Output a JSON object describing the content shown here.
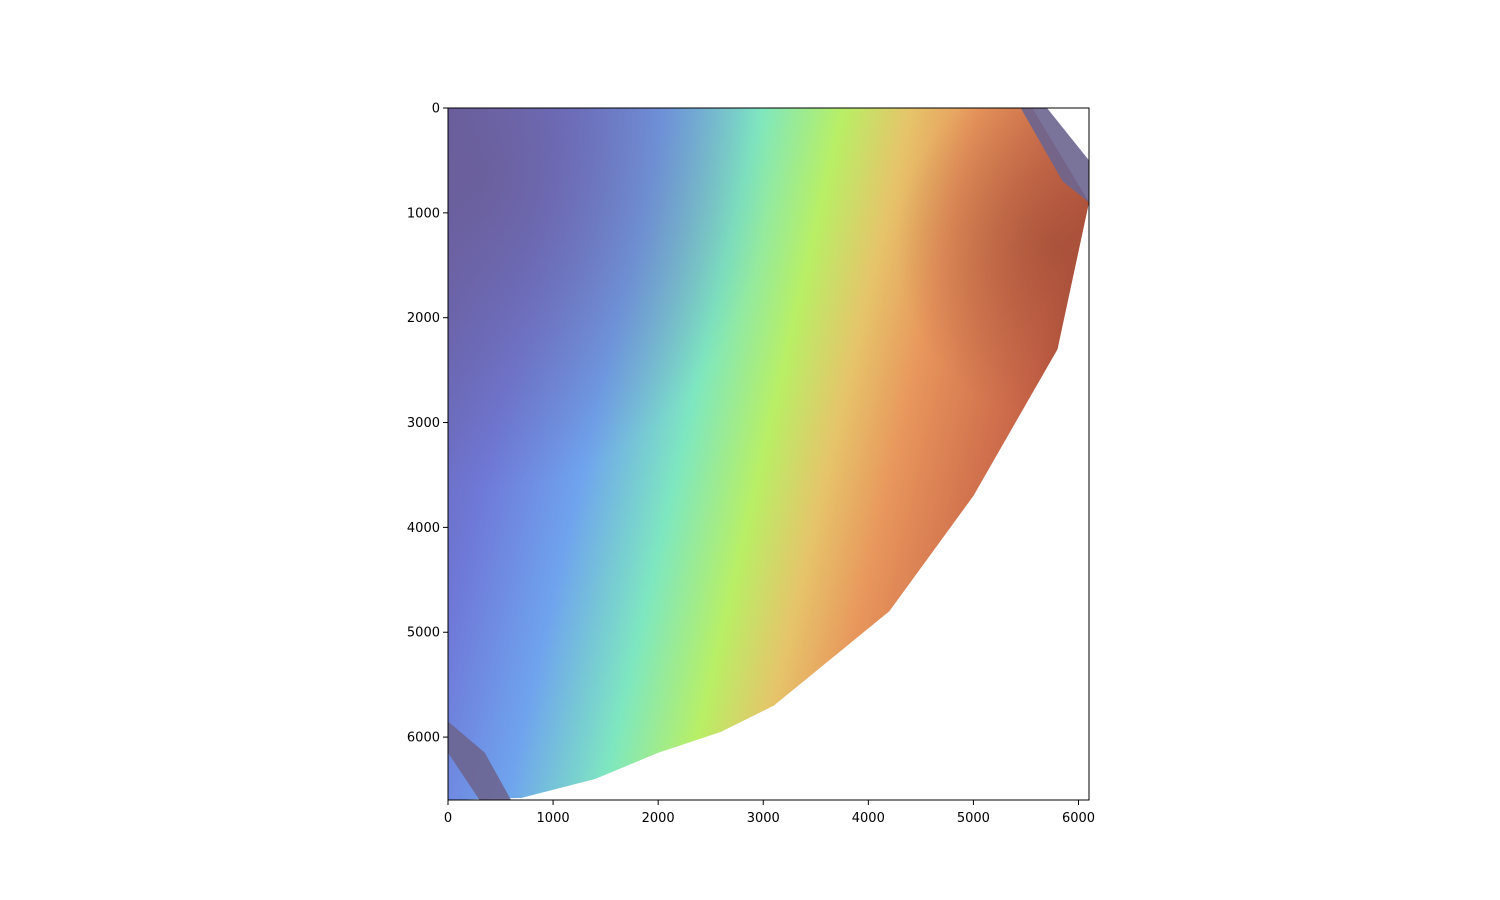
{
  "chart_data": {
    "type": "heatmap",
    "title": "",
    "xlabel": "",
    "ylabel": "",
    "xlim": [
      0,
      6100
    ],
    "ylim": [
      6600,
      0
    ],
    "x_ticks": [
      0,
      1000,
      2000,
      3000,
      4000,
      5000,
      6000
    ],
    "y_ticks": [
      0,
      1000,
      2000,
      3000,
      4000,
      5000,
      6000
    ],
    "colormap": "turbo-like shaded relief",
    "grid": false,
    "legend": "none",
    "colors": {
      "low": "#6a5fa6",
      "low_mid": "#6fa3ee",
      "mid": "#7ee7c0",
      "mid_high": "#b8ef66",
      "high": "#e8955c",
      "peak": "#b0523a",
      "water": "#6b6590"
    },
    "raster_outline": [
      [
        0,
        0
      ],
      [
        5560,
        0
      ],
      [
        6100,
        900
      ],
      [
        5800,
        2300
      ],
      [
        5000,
        3700
      ],
      [
        4200,
        4800
      ],
      [
        3100,
        5700
      ],
      [
        2600,
        5950
      ],
      [
        2000,
        6150
      ],
      [
        1400,
        6400
      ],
      [
        700,
        6580
      ],
      [
        0,
        6600
      ]
    ],
    "river_channels": [
      [
        [
          5450,
          0
        ],
        [
          5700,
          0
        ],
        [
          6100,
          500
        ],
        [
          6100,
          900
        ],
        [
          5850,
          700
        ]
      ],
      [
        [
          0,
          5850
        ],
        [
          350,
          6150
        ],
        [
          600,
          6600
        ],
        [
          300,
          6600
        ],
        [
          0,
          6150
        ]
      ]
    ]
  }
}
